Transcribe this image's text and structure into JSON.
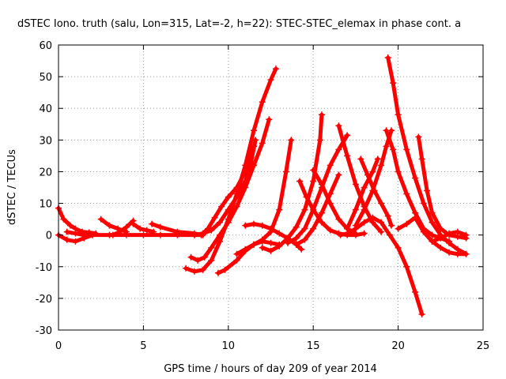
{
  "chart_data": {
    "type": "scatter",
    "title": "dSTEC Iono. truth (salu, Lon=315, Lat=-2, h=22): STEC-STEC_elemax in phase cont. a",
    "xlabel": "GPS time / hours of day 209 of year 2014",
    "ylabel": "dSTEC  / TECUs",
    "xlim": [
      0,
      25
    ],
    "ylim": [
      -30,
      60
    ],
    "xticks": [
      0,
      5,
      10,
      15,
      20,
      25
    ],
    "yticks": [
      -30,
      -20,
      -10,
      0,
      10,
      20,
      30,
      40,
      50,
      60
    ],
    "grid": true,
    "legend": "none",
    "marker": "plus",
    "color": "#ff0000",
    "series": [
      {
        "x": [
          0.0,
          0.3,
          0.7,
          1.0,
          1.4,
          1.8,
          2.2
        ],
        "y": [
          8.5,
          5.0,
          3.0,
          2.0,
          1.0,
          0.8,
          0.5
        ]
      },
      {
        "x": [
          0.0,
          0.5,
          1.0,
          1.5,
          2.0
        ],
        "y": [
          0.0,
          -1.5,
          -2.0,
          -1.0,
          0.0
        ]
      },
      {
        "x": [
          0.5,
          1.0,
          1.5,
          2.0,
          3.0,
          4.0,
          5.0,
          6.0,
          7.0,
          8.0,
          8.5
        ],
        "y": [
          1.0,
          0.5,
          0.0,
          0.0,
          0.0,
          0.0,
          0.0,
          0.0,
          0.0,
          0.0,
          0.0
        ]
      },
      {
        "x": [
          2.5,
          3.0,
          3.5,
          4.0
        ],
        "y": [
          5.0,
          3.0,
          2.0,
          1.0
        ]
      },
      {
        "x": [
          3.2,
          3.6,
          4.0,
          4.4
        ],
        "y": [
          0.0,
          1.0,
          2.5,
          4.5
        ]
      },
      {
        "x": [
          4.4,
          4.8,
          5.2,
          5.6
        ],
        "y": [
          3.5,
          2.0,
          1.5,
          1.0
        ]
      },
      {
        "x": [
          5.5,
          6.0,
          7.0,
          8.0,
          8.5
        ],
        "y": [
          3.5,
          2.5,
          1.0,
          0.5,
          0.0
        ]
      },
      {
        "x": [
          7.5,
          8.0,
          8.5,
          9.0,
          9.5,
          10.0,
          10.5,
          11.0,
          11.5,
          12.0,
          12.5,
          12.8
        ],
        "y": [
          -10.5,
          -11.5,
          -11.0,
          -8.0,
          -2.0,
          5.0,
          13.0,
          22.0,
          33.0,
          42.0,
          49.0,
          52.5
        ]
      },
      {
        "x": [
          7.8,
          8.2,
          8.6,
          9.0,
          9.5,
          10.0,
          10.5,
          11.0,
          11.5,
          12.0,
          12.4
        ],
        "y": [
          -7.0,
          -8.0,
          -7.0,
          -4.0,
          0.0,
          4.0,
          9.0,
          15.0,
          22.0,
          29.0,
          36.5
        ]
      },
      {
        "x": [
          8.4,
          8.8,
          9.2,
          9.6,
          10.0,
          10.5,
          11.0,
          11.5
        ],
        "y": [
          0.0,
          2.0,
          5.5,
          9.0,
          12.0,
          15.0,
          20.0,
          28.0
        ]
      },
      {
        "x": [
          8.0,
          8.5,
          9.0,
          9.5,
          10.0,
          10.5,
          11.0,
          11.3,
          11.6
        ],
        "y": [
          0.0,
          0.5,
          1.5,
          4.0,
          8.0,
          12.0,
          17.0,
          22.0,
          30.0
        ]
      },
      {
        "x": [
          9.4,
          9.8,
          10.5,
          11.0,
          11.5,
          12.0,
          12.5,
          13.0
        ],
        "y": [
          -12.0,
          -11.0,
          -8.0,
          -5.0,
          -3.0,
          -2.0,
          -2.5,
          -3.0
        ]
      },
      {
        "x": [
          10.5,
          11.0,
          11.5,
          12.0,
          12.5,
          13.0,
          13.4,
          13.7
        ],
        "y": [
          -6.0,
          -4.5,
          -3.0,
          -1.5,
          1.0,
          8.0,
          20.0,
          30.0
        ]
      },
      {
        "x": [
          11.0,
          11.5,
          12.0,
          12.5,
          13.0,
          13.5,
          14.0,
          14.3
        ],
        "y": [
          3.0,
          3.5,
          3.0,
          2.0,
          0.5,
          -1.0,
          -3.0,
          -4.5
        ]
      },
      {
        "x": [
          12.0,
          12.5,
          13.0,
          13.5,
          14.0,
          14.5,
          15.0,
          15.4,
          15.5
        ],
        "y": [
          -4.0,
          -5.0,
          -3.5,
          -1.0,
          2.5,
          8.0,
          17.0,
          30.0,
          38.0
        ]
      },
      {
        "x": [
          13.5,
          14.0,
          14.5,
          15.0,
          15.5,
          16.0,
          16.5,
          17.0
        ],
        "y": [
          -2.5,
          -1.0,
          2.0,
          8.0,
          15.0,
          22.0,
          27.0,
          31.5
        ]
      },
      {
        "x": [
          14.0,
          14.5,
          15.0,
          15.5,
          16.0,
          16.5
        ],
        "y": [
          -3.0,
          -1.5,
          2.0,
          7.0,
          13.0,
          19.0
        ]
      },
      {
        "x": [
          14.2,
          14.6,
          15.0,
          15.5,
          16.0,
          16.5,
          17.0,
          17.5,
          18.0
        ],
        "y": [
          17.0,
          12.0,
          8.0,
          4.0,
          1.5,
          0.5,
          0.0,
          0.0,
          0.5
        ]
      },
      {
        "x": [
          15.0,
          15.5,
          16.0,
          16.5,
          17.0,
          17.5
        ],
        "y": [
          20.5,
          16.0,
          10.0,
          5.0,
          2.0,
          0.5
        ]
      },
      {
        "x": [
          16.5,
          17.0,
          17.5,
          18.0,
          18.5,
          19.0
        ],
        "y": [
          34.5,
          25.0,
          16.0,
          9.0,
          4.0,
          1.0
        ]
      },
      {
        "x": [
          16.6,
          17.0,
          17.5,
          18.0,
          18.5,
          19.0,
          19.5,
          20.0,
          20.5,
          21.0,
          21.4
        ],
        "y": [
          0.0,
          0.5,
          2.0,
          4.0,
          5.5,
          4.0,
          0.0,
          -4.0,
          -10.0,
          -18.0,
          -25.0
        ]
      },
      {
        "x": [
          17.0,
          17.5,
          18.0,
          18.5,
          18.8
        ],
        "y": [
          2.0,
          8.0,
          15.0,
          20.0,
          24.0
        ]
      },
      {
        "x": [
          17.8,
          18.2,
          18.6,
          19.0,
          19.4,
          19.6
        ],
        "y": [
          24.0,
          19.0,
          14.0,
          10.0,
          6.0,
          3.0
        ]
      },
      {
        "x": [
          17.5,
          18.0,
          18.5,
          19.0,
          19.3,
          19.6
        ],
        "y": [
          3.0,
          8.0,
          14.0,
          22.0,
          28.0,
          33.0
        ]
      },
      {
        "x": [
          19.3,
          19.7,
          20.0,
          20.5,
          21.0,
          21.5,
          22.0,
          22.5,
          23.0
        ],
        "y": [
          33.0,
          27.0,
          20.0,
          13.0,
          7.0,
          2.0,
          0.0,
          -1.0,
          -2.0
        ]
      },
      {
        "x": [
          19.4,
          19.7,
          20.0,
          20.5,
          21.0,
          21.5,
          22.0,
          22.5,
          23.0,
          23.5,
          24.0
        ],
        "y": [
          56.0,
          48.0,
          38.0,
          27.0,
          18.0,
          10.0,
          4.0,
          0.0,
          -2.5,
          -4.5,
          -6.0
        ]
      },
      {
        "x": [
          20.0,
          20.5,
          21.0,
          21.5,
          22.0,
          22.5,
          23.0,
          23.5,
          24.0
        ],
        "y": [
          2.0,
          3.5,
          5.5,
          1.0,
          -2.0,
          -4.0,
          -5.5,
          -6.0,
          -6.0
        ]
      },
      {
        "x": [
          21.2,
          21.4,
          21.7,
          22.0,
          22.5,
          23.0,
          23.5,
          24.0
        ],
        "y": [
          31.0,
          24.0,
          14.0,
          7.0,
          2.0,
          0.0,
          -0.5,
          -1.0
        ]
      },
      {
        "x": [
          22.0,
          22.5,
          23.0,
          23.5,
          24.0
        ],
        "y": [
          -2.0,
          -1.0,
          0.5,
          1.0,
          0.0
        ]
      }
    ]
  }
}
